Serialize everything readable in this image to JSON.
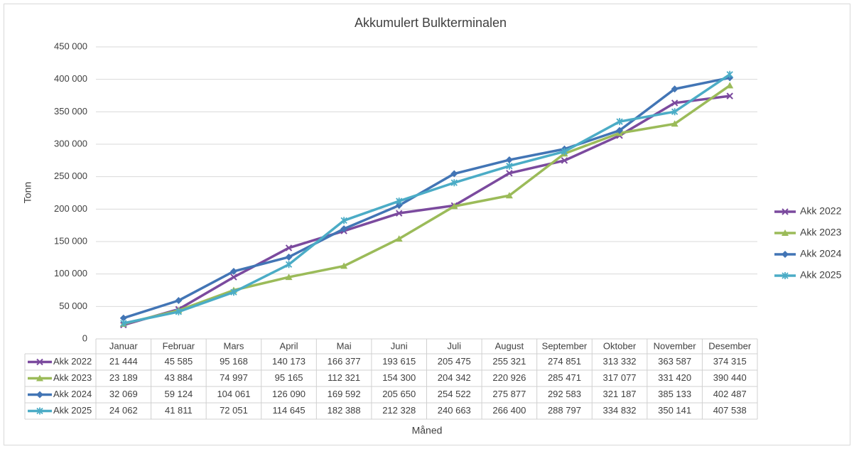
{
  "chart_data": {
    "type": "line",
    "title": "Akkumulert Bulkterminalen",
    "x_label": "Måned",
    "y_label": "Tonn",
    "categories": [
      "Januar",
      "Februar",
      "Mars",
      "April",
      "Mai",
      "Juni",
      "Juli",
      "August",
      "September",
      "Oktober",
      "November",
      "Desember"
    ],
    "ylim": [
      0,
      450000
    ],
    "yticks": [
      0,
      {
        "value": 50000,
        "label": "50 000"
      },
      {
        "value": 100000,
        "label": "100 000"
      },
      {
        "value": 150000,
        "label": "150 000"
      },
      {
        "value": 200000,
        "label": "200 000"
      },
      {
        "value": 250000,
        "label": "250 000"
      },
      {
        "value": 300000,
        "label": "300 000"
      },
      {
        "value": 350000,
        "label": "350 000"
      },
      {
        "value": 400000,
        "label": "400 000"
      },
      {
        "value": 450000,
        "label": "450 000"
      }
    ],
    "grid": true,
    "legend": "right",
    "series": [
      {
        "name": "Akk 2022",
        "color": "#7b4a9e",
        "marker": "x",
        "values": [
          21444,
          45585,
          95168,
          140173,
          166377,
          193615,
          205475,
          255321,
          274851,
          313332,
          363587,
          374315
        ],
        "value_labels": [
          "21 444",
          "45 585",
          "95 168",
          "140 173",
          "166 377",
          "193 615",
          "205 475",
          "255 321",
          "274 851",
          "313 332",
          "363 587",
          "374 315"
        ]
      },
      {
        "name": "Akk 2023",
        "color": "#9bbb59",
        "marker": "triangle",
        "values": [
          23189,
          43884,
          74997,
          95165,
          112321,
          154300,
          204342,
          220926,
          285471,
          317077,
          331420,
          390440
        ],
        "value_labels": [
          "23 189",
          "43 884",
          "74 997",
          "95 165",
          "112 321",
          "154 300",
          "204 342",
          "220 926",
          "285 471",
          "317 077",
          "331 420",
          "390 440"
        ]
      },
      {
        "name": "Akk 2024",
        "color": "#4275b5",
        "marker": "diamond",
        "values": [
          32069,
          59124,
          104061,
          126090,
          169592,
          205650,
          254522,
          275877,
          292583,
          321187,
          385133,
          402487
        ],
        "value_labels": [
          "32 069",
          "59 124",
          "104 061",
          "126 090",
          "169 592",
          "205 650",
          "254 522",
          "275 877",
          "292 583",
          "321 187",
          "385 133",
          "402 487"
        ]
      },
      {
        "name": "Akk 2025",
        "color": "#4bacc6",
        "marker": "star",
        "values": [
          24062,
          41811,
          72051,
          114645,
          182388,
          212328,
          240663,
          266400,
          288797,
          334832,
          350141,
          407538
        ],
        "value_labels": [
          "24 062",
          "41 811",
          "72 051",
          "114 645",
          "182 388",
          "212 328",
          "240 663",
          "266 400",
          "288 797",
          "334 832",
          "350 141",
          "407 538"
        ]
      }
    ]
  }
}
